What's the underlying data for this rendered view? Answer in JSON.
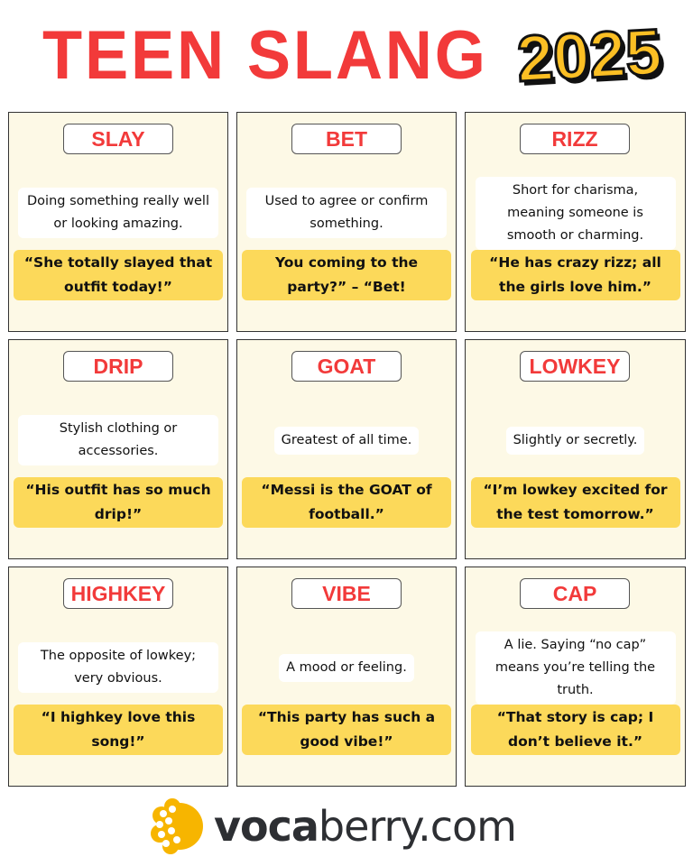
{
  "header": {
    "title": "TEEN SLANG",
    "year": "2025"
  },
  "cards": [
    {
      "word": "SLAY",
      "definition": "Doing something really well or looking amazing.",
      "example": "“She totally slayed that outfit today!”"
    },
    {
      "word": "BET",
      "definition": "Used to agree or confirm something.",
      "example": "You coming to the party?” – “Bet!"
    },
    {
      "word": "RIZZ",
      "definition": "Short for charisma, meaning someone is smooth or charming.",
      "example": "“He has crazy rizz; all the girls love him.”"
    },
    {
      "word": "DRIP",
      "definition": "Stylish clothing or accessories.",
      "example": "“His outfit has so much drip!”"
    },
    {
      "word": "GOAT",
      "definition": "Greatest of all time.",
      "example": "“Messi is the GOAT of football.”"
    },
    {
      "word": "LOWKEY",
      "definition": "Slightly or secretly.",
      "example": "“I’m lowkey excited for the test tomorrow.”"
    },
    {
      "word": "HIGHKEY",
      "definition": "The opposite of lowkey; very obvious.",
      "example": "“I highkey love this song!”"
    },
    {
      "word": "VIBE",
      "definition": "A mood or feeling.",
      "example": "“This party has such a good vibe!”"
    },
    {
      "word": "CAP",
      "definition": "A lie. Saying “no cap” means you’re telling the truth.",
      "example": "“That story is cap; I don’t believe it.”"
    }
  ],
  "footer": {
    "brand_bold": "voca",
    "brand_rest": "berry.com"
  },
  "colors": {
    "title": "#f23a3a",
    "year": "#fbbf24",
    "card_bg": "#fdf9e6",
    "highlight": "#fcd95a"
  }
}
